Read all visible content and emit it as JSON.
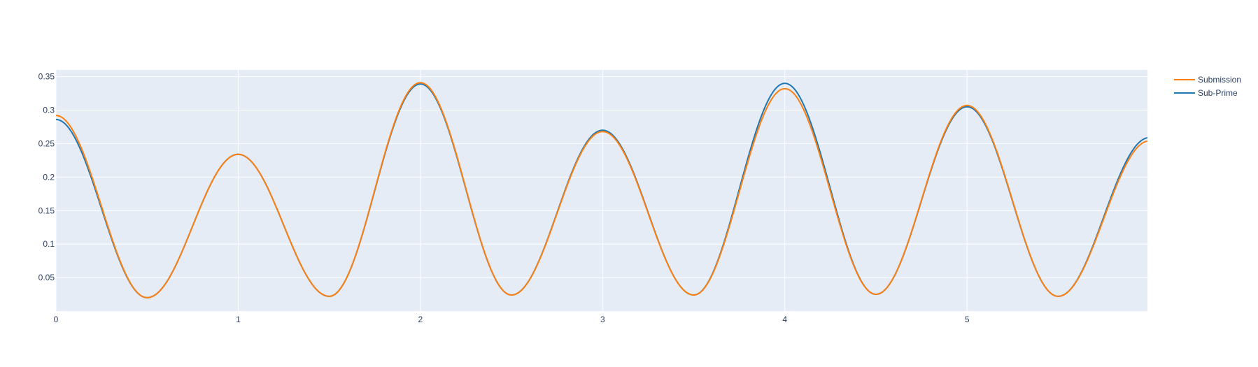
{
  "chart_data": {
    "type": "line",
    "title": "",
    "xlabel": "",
    "ylabel": "",
    "xlim": [
      0,
      5.99
    ],
    "ylim": [
      0.0,
      0.36
    ],
    "grid": true,
    "legend_position": "top-right",
    "x_ticks": [
      0,
      1,
      2,
      3,
      4,
      5
    ],
    "x_tick_labels": [
      "0",
      "1",
      "2",
      "3",
      "4",
      "5"
    ],
    "y_ticks": [
      0.05,
      0.1,
      0.15,
      0.2,
      0.25,
      0.3,
      0.35
    ],
    "y_tick_labels": [
      "0.05",
      "0.1",
      "0.15",
      "0.2",
      "0.25",
      "0.3",
      "0.35"
    ],
    "colors": {
      "plot_bg": "#e5ecf6",
      "grid": "#ffffff",
      "text": "#2a3f5f",
      "submission": "#ff7f0e",
      "subprime": "#1f77b4"
    },
    "series_params": [
      {
        "name": "Sub-Prime",
        "color": "#1f77b4",
        "peaks": [
          0.286,
          0.234,
          0.339,
          0.27,
          0.34,
          0.305,
          0.259
        ],
        "troughs": [
          0.02,
          0.022,
          0.024,
          0.024,
          0.025,
          0.022
        ]
      },
      {
        "name": "Submission",
        "color": "#ff7f0e",
        "peaks": [
          0.292,
          0.234,
          0.341,
          0.268,
          0.332,
          0.307,
          0.254
        ],
        "troughs": [
          0.02,
          0.022,
          0.024,
          0.024,
          0.025,
          0.022
        ]
      }
    ],
    "legend": [
      {
        "name": "Submission",
        "color": "#ff7f0e"
      },
      {
        "name": "Sub-Prime",
        "color": "#1f77b4"
      }
    ]
  }
}
